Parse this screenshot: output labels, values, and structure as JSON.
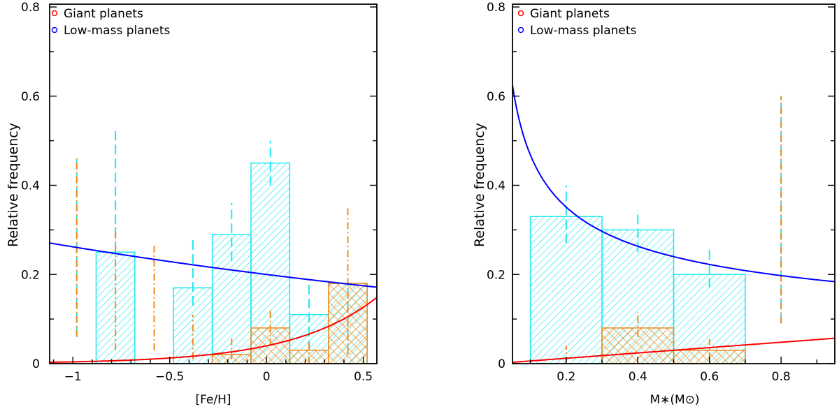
{
  "colors": {
    "giant": "#ff0000",
    "lowmass": "#0000ff",
    "giant_hist": "#f28c1e",
    "lowmass_hist": "#22e8f0",
    "axis": "#000000"
  },
  "chart_data": [
    {
      "type": "bar",
      "title": "",
      "xlabel": "[Fe/H]",
      "ylabel": "Relative frequency",
      "xlim": [
        -1.12,
        0.57
      ],
      "ylim": [
        0,
        0.8
      ],
      "xticks": [
        -1,
        -0.5,
        0,
        0.5
      ],
      "xtick_labels": [
        "−1",
        "−0.5",
        "0",
        "0.5"
      ],
      "yticks": [
        0,
        0.2,
        0.4,
        0.6,
        0.8
      ],
      "ytick_labels": [
        "0",
        "0.2",
        "0.4",
        "0.6",
        "0.8"
      ],
      "legend": {
        "placement": "top-left",
        "entries": [
          "Giant planets",
          "Low-mass planets"
        ]
      },
      "bin_width": 0.2,
      "lowmass_hist": {
        "centers": [
          -0.78,
          -0.38,
          -0.18,
          0.02,
          0.22,
          0.42
        ],
        "values": [
          0.25,
          0.17,
          0.29,
          0.45,
          0.11,
          0.18
        ]
      },
      "giant_hist": {
        "centers": [
          -0.18,
          0.02,
          0.22,
          0.42
        ],
        "values": [
          0.02,
          0.08,
          0.03,
          0.18
        ]
      },
      "lowmass_errors": [
        {
          "x": -0.98,
          "lo": 0.06,
          "hi": 0.46
        },
        {
          "x": -0.78,
          "lo": 0.25,
          "hi": 0.53
        },
        {
          "x": -0.38,
          "lo": 0.13,
          "hi": 0.28
        },
        {
          "x": -0.18,
          "lo": 0.23,
          "hi": 0.36
        },
        {
          "x": 0.02,
          "lo": 0.4,
          "hi": 0.5
        },
        {
          "x": 0.22,
          "lo": 0.03,
          "hi": 0.19
        },
        {
          "x": 0.42,
          "lo": 0.02,
          "hi": 0.18
        }
      ],
      "giant_errors": [
        {
          "x": -0.98,
          "lo": 0.06,
          "hi": 0.46
        },
        {
          "x": -0.78,
          "lo": 0.03,
          "hi": 0.31
        },
        {
          "x": -0.58,
          "lo": 0.03,
          "hi": 0.27
        },
        {
          "x": -0.38,
          "lo": 0.01,
          "hi": 0.11
        },
        {
          "x": -0.18,
          "lo": 0.01,
          "hi": 0.06
        },
        {
          "x": 0.02,
          "lo": 0.04,
          "hi": 0.12
        },
        {
          "x": 0.22,
          "lo": 0.0,
          "hi": 0.05
        },
        {
          "x": 0.42,
          "lo": 0.02,
          "hi": 0.35
        }
      ],
      "fits": {
        "lowmass": {
          "form": "a*exp(b*x)",
          "a": 0.2,
          "b": -0.27
        },
        "giant": {
          "form": "a*10^(b*x)",
          "a": 0.04,
          "b": 1.0
        }
      }
    },
    {
      "type": "bar",
      "title": "",
      "xlabel": "M∗(M⊙)",
      "ylabel": "Relative frequency",
      "xlim": [
        0.05,
        0.95
      ],
      "ylim": [
        0,
        0.8
      ],
      "xticks": [
        0.2,
        0.4,
        0.6,
        0.8
      ],
      "xtick_labels": [
        "0.2",
        "0.4",
        "0.6",
        "0.8"
      ],
      "yticks": [
        0,
        0.2,
        0.4,
        0.6,
        0.8
      ],
      "ytick_labels": [
        "0",
        "0.2",
        "0.4",
        "0.6",
        "0.8"
      ],
      "legend": {
        "placement": "top-left",
        "entries": [
          "Giant planets",
          "Low-mass planets"
        ]
      },
      "bin_width": 0.2,
      "lowmass_hist": {
        "centers": [
          0.2,
          0.4,
          0.6
        ],
        "values": [
          0.33,
          0.3,
          0.2
        ]
      },
      "giant_hist": {
        "centers": [
          0.2,
          0.4,
          0.6,
          0.8
        ],
        "values": [
          0,
          0.08,
          0.03,
          0
        ]
      },
      "lowmass_errors": [
        {
          "x": 0.2,
          "lo": 0.27,
          "hi": 0.4
        },
        {
          "x": 0.4,
          "lo": 0.25,
          "hi": 0.345
        },
        {
          "x": 0.6,
          "lo": 0.17,
          "hi": 0.26
        },
        {
          "x": 0.8,
          "lo": 0.09,
          "hi": 0.6
        }
      ],
      "giant_errors": [
        {
          "x": 0.2,
          "lo": 0.0,
          "hi": 0.04
        },
        {
          "x": 0.4,
          "lo": 0.06,
          "hi": 0.115
        },
        {
          "x": 0.6,
          "lo": 0.01,
          "hi": 0.055
        },
        {
          "x": 0.8,
          "lo": 0.09,
          "hi": 0.6
        }
      ],
      "fits": {
        "lowmass": {
          "form": "a*x^b",
          "a": 0.18,
          "b": -0.415
        },
        "giant": {
          "form": "a*x",
          "a": 0.06
        }
      }
    }
  ]
}
